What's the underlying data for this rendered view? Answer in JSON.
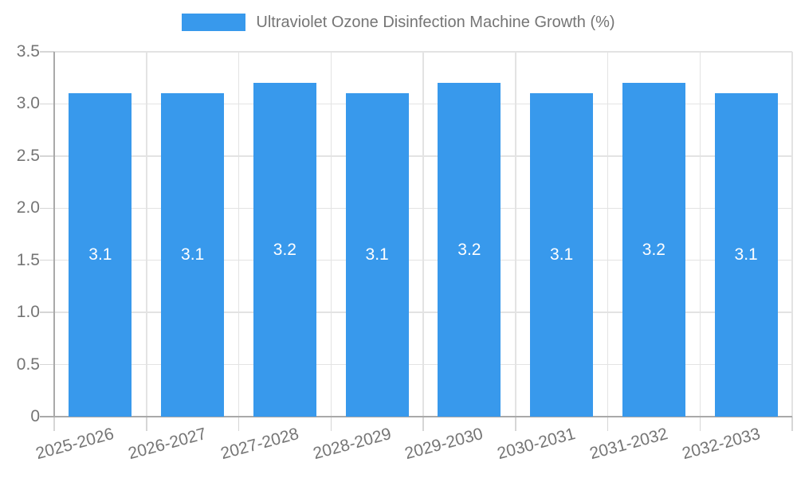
{
  "legend": {
    "label": "Ultraviolet Ozone Disinfection Machine Growth (%)"
  },
  "chart_data": {
    "type": "bar",
    "title": "Ultraviolet Ozone Disinfection Machine Growth (%)",
    "categories": [
      "2025-2026",
      "2026-2027",
      "2027-2028",
      "2028-2029",
      "2029-2030",
      "2030-2031",
      "2031-2032",
      "2032-2033"
    ],
    "values": [
      3.1,
      3.1,
      3.2,
      3.1,
      3.2,
      3.1,
      3.2,
      3.1
    ],
    "bar_labels": [
      "3.1",
      "3.1",
      "3.2",
      "3.1",
      "3.2",
      "3.1",
      "3.2",
      "3.1"
    ],
    "xlabel": "",
    "ylabel": "",
    "ylim": [
      0,
      3.5
    ],
    "ytick_step": 0.5,
    "ytick_labels": [
      "0",
      "0.5",
      "1.0",
      "1.5",
      "2.0",
      "2.5",
      "3.0",
      "3.5"
    ],
    "grid": true,
    "legend_position": "top",
    "value_labels_position": "center-inside"
  },
  "colors": {
    "bar": "#3899ec",
    "bar_label": "#ffffff",
    "axis_text": "#757575",
    "gridline": "#e3e3e3",
    "axis_line": "#a9a9a9",
    "tick": "#d6d6d6",
    "legend_text": "#757575"
  }
}
